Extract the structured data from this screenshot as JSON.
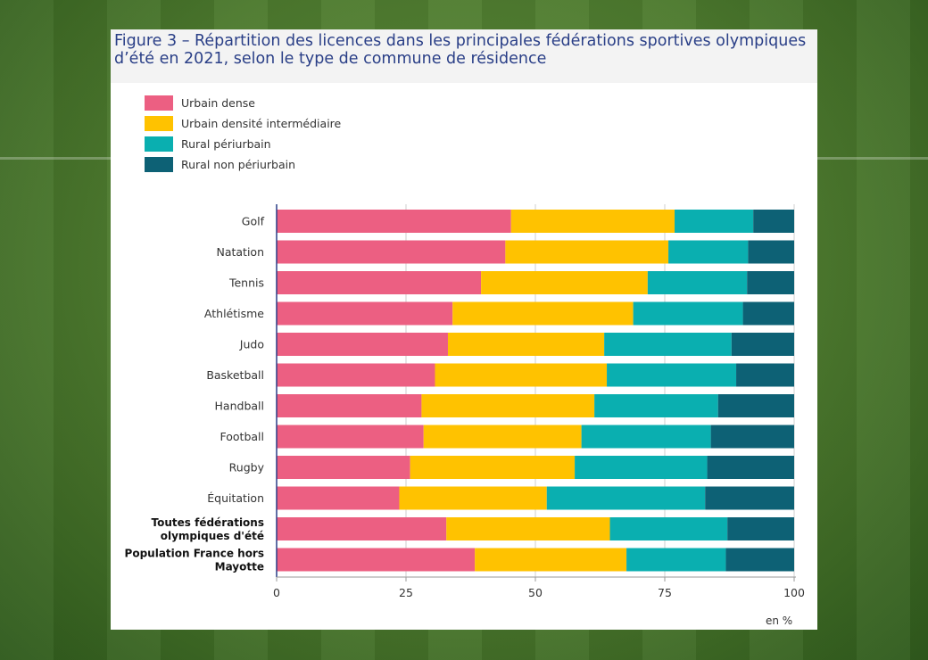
{
  "chart_data": {
    "type": "bar",
    "orientation": "horizontal",
    "stacked": true,
    "title": "Figure 3 – Répartition des licences dans les principales fédérations sportives olympiques d’été en 2021, selon le type de commune de résidence",
    "categories": [
      "Golf",
      "Natation",
      "Tennis",
      "Athlétisme",
      "Judo",
      "Basketball",
      "Handball",
      "Football",
      "Rugby",
      "Équitation",
      "Toutes fédérations olympiques d'été",
      "Population France hors Mayotte"
    ],
    "bold_categories": [
      "Toutes fédérations olympiques d'été",
      "Population France hors Mayotte"
    ],
    "series": [
      {
        "name": "Urbain dense",
        "color": "#ec5f82",
        "values": [
          45.3,
          44.2,
          39.5,
          34.0,
          33.1,
          30.6,
          28.0,
          28.4,
          25.8,
          23.7,
          32.8,
          38.3
        ]
      },
      {
        "name": "Urbain densité intermédiaire",
        "color": "#ffc200",
        "values": [
          31.6,
          31.5,
          32.2,
          34.9,
          30.2,
          33.2,
          33.4,
          30.5,
          31.8,
          28.5,
          31.6,
          29.3
        ]
      },
      {
        "name": "Rural périurbain",
        "color": "#0aafb0",
        "values": [
          15.2,
          15.4,
          19.2,
          21.2,
          24.6,
          25.0,
          23.9,
          25.0,
          25.6,
          30.6,
          22.7,
          19.2
        ]
      },
      {
        "name": "Rural non périurbain",
        "color": "#0d6175",
        "values": [
          7.9,
          8.9,
          9.1,
          9.9,
          12.1,
          11.2,
          14.7,
          16.1,
          16.8,
          17.2,
          12.9,
          13.2
        ]
      }
    ],
    "xlim": [
      0,
      100
    ],
    "xticks": [
      0,
      25,
      50,
      75,
      100
    ],
    "xlabel": "en %",
    "legend_position": "top-left",
    "grid": true
  }
}
